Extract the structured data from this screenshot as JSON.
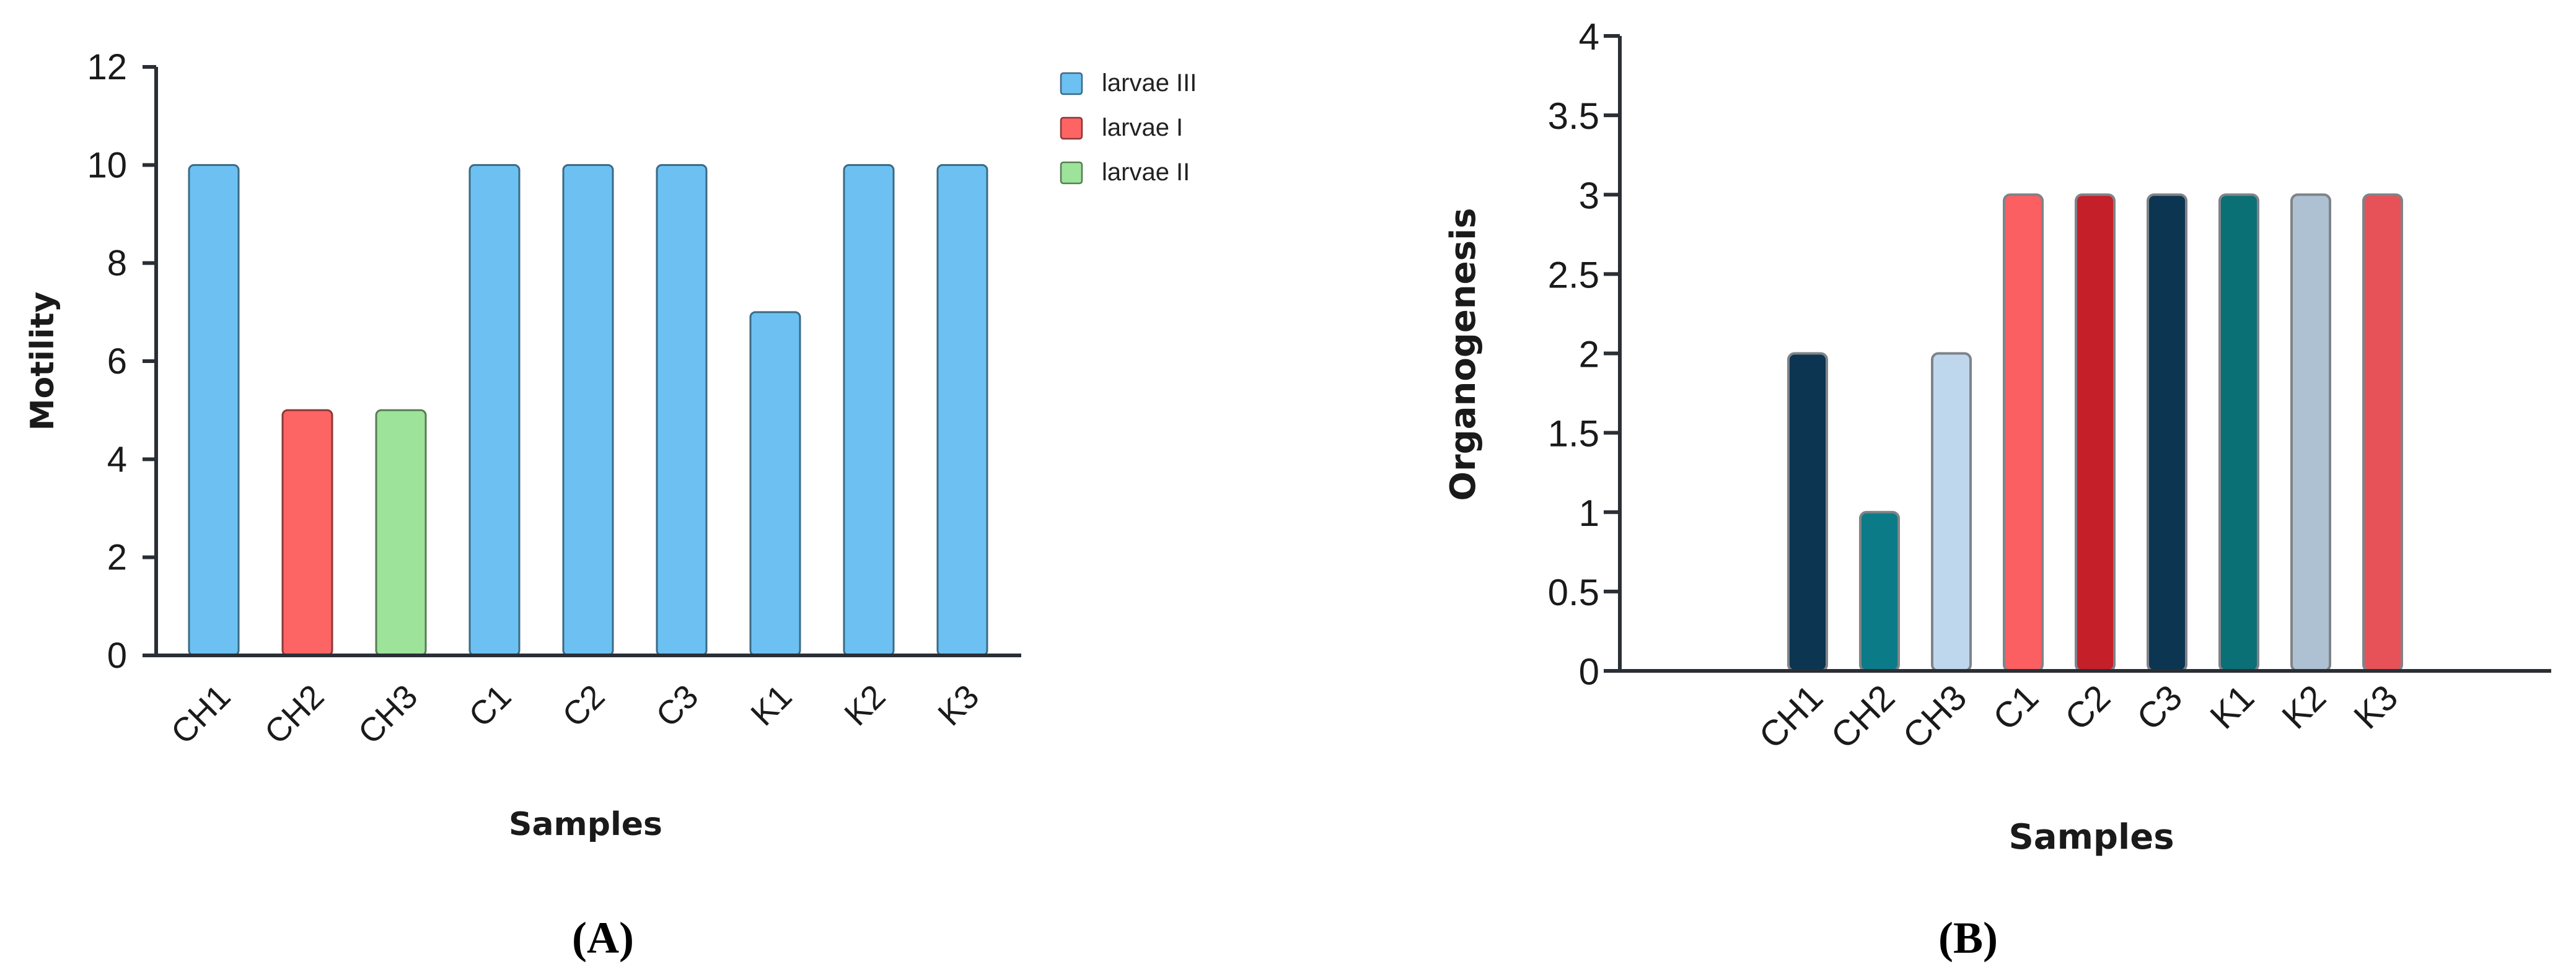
{
  "chart_data": [
    {
      "panel": "(A)",
      "type": "bar",
      "xlabel": "Samples",
      "ylabel": "Motility",
      "ylim": [
        0,
        12
      ],
      "yticks": [
        0,
        2,
        4,
        6,
        8,
        10,
        12
      ],
      "grid": false,
      "legend_position": "top-right",
      "categories": [
        "CH1",
        "CH2",
        "CH3",
        "C1",
        "C2",
        "C3",
        "K1",
        "K2",
        "K3"
      ],
      "values": [
        10,
        5,
        5,
        10,
        10,
        10,
        7,
        10,
        10
      ],
      "bar_series": [
        "larvae III",
        "larvae I",
        "larvae II",
        "larvae III",
        "larvae III",
        "larvae III",
        "larvae III",
        "larvae III",
        "larvae III"
      ],
      "legend": [
        {
          "name": "larvae III",
          "color": "#6cc1f2"
        },
        {
          "name": "larvae I",
          "color": "#fd6464"
        },
        {
          "name": "larvae II",
          "color": "#9de39a"
        }
      ]
    },
    {
      "panel": "(B)",
      "type": "bar",
      "xlabel": "Samples",
      "ylabel": "Organogenesis",
      "ylim": [
        0,
        4
      ],
      "yticks": [
        "0",
        "0.5",
        "1",
        "1.5",
        "2",
        "2.5",
        "3",
        "3.5",
        "4"
      ],
      "grid": false,
      "categories": [
        "CH1",
        "CH2",
        "CH3",
        "C1",
        "C2",
        "C3",
        "K1",
        "K2",
        "K3"
      ],
      "values": [
        2,
        1,
        2,
        3,
        3,
        3,
        3,
        3,
        3
      ],
      "colors": [
        "#0b3550",
        "#0b7b87",
        "#bfd7ec",
        "#fc5f61",
        "#c51f2a",
        "#0b3550",
        "#0b6f76",
        "#adc1d2",
        "#e65258"
      ]
    }
  ]
}
